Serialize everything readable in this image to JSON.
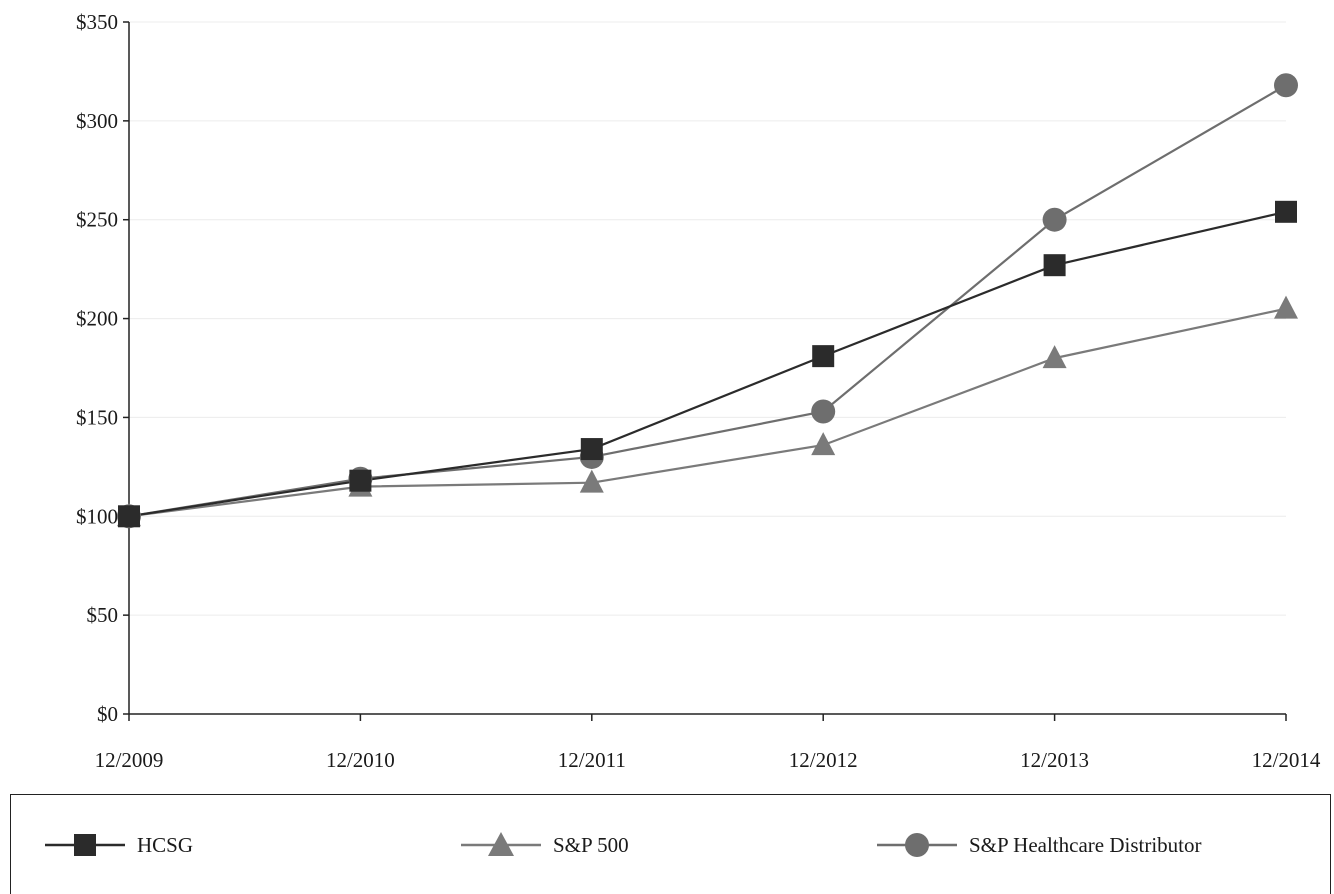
{
  "chart_data": {
    "type": "line",
    "categories": [
      "12/2009",
      "12/2010",
      "12/2011",
      "12/2012",
      "12/2013",
      "12/2014"
    ],
    "ylim": [
      0,
      350
    ],
    "yticks": [
      "$0",
      "$50",
      "$100",
      "$150",
      "$200",
      "$250",
      "$300",
      "$350"
    ],
    "ytick_values": [
      0,
      50,
      100,
      150,
      200,
      250,
      300,
      350
    ],
    "grid": true,
    "legend_position": "bottom",
    "series": [
      {
        "name": "HCSG",
        "marker": "square",
        "color": "#2b2b2b",
        "values": [
          100,
          118,
          134,
          181,
          227,
          254
        ]
      },
      {
        "name": "S&P 500",
        "marker": "triangle",
        "color": "#7a7a7a",
        "values": [
          100,
          115,
          117,
          136,
          180,
          205
        ]
      },
      {
        "name": "S&P Healthcare Distributor",
        "marker": "circle",
        "color": "#6e6e6e",
        "values": [
          100,
          119,
          130,
          153,
          250,
          318
        ]
      }
    ]
  }
}
